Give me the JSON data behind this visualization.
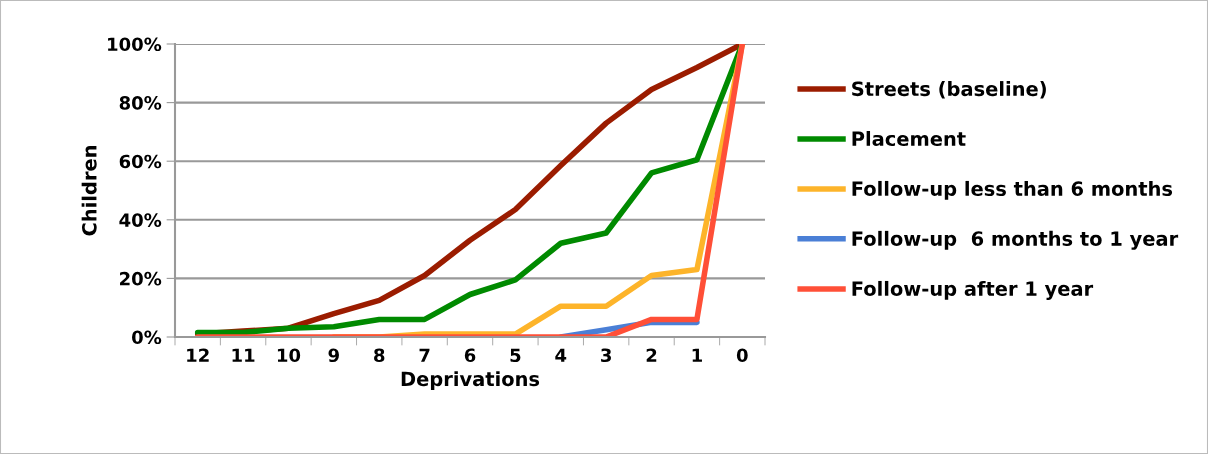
{
  "chart_data": {
    "type": "line",
    "xlabel": "Deprivations",
    "ylabel": "Children",
    "categories": [
      "12",
      "11",
      "10",
      "9",
      "8",
      "7",
      "6",
      "5",
      "4",
      "3",
      "2",
      "1",
      "0"
    ],
    "series": [
      {
        "name": "Streets (baseline)",
        "color": "#9b1c00",
        "values": [
          1,
          2,
          3,
          8,
          12.5,
          21,
          33,
          43.5,
          58.5,
          73,
          84.5,
          92,
          100
        ]
      },
      {
        "name": "Placement",
        "color": "#008a00",
        "values": [
          1.5,
          1.5,
          3,
          3.5,
          6,
          6,
          14.5,
          19.5,
          32,
          35.5,
          56,
          60.5,
          100
        ]
      },
      {
        "name": "Follow-up less than 6 months",
        "color": "#fdb42a",
        "values": [
          null,
          null,
          null,
          0,
          0,
          1,
          1,
          1,
          10.5,
          10.5,
          21,
          23,
          100
        ]
      },
      {
        "name": "Follow-up  6 months to 1 year",
        "color": "#4a7fd6",
        "values": [
          null,
          null,
          null,
          null,
          null,
          null,
          null,
          null,
          0,
          2.5,
          5,
          5,
          null
        ]
      },
      {
        "name": "Follow-up after 1 year",
        "color": "#ff4f37",
        "values": [
          0,
          0,
          0,
          0,
          0,
          0,
          0,
          0,
          0,
          0,
          6,
          6,
          100
        ]
      }
    ],
    "ylim": [
      0,
      100
    ],
    "yticks": [
      {
        "value": 0,
        "label": "0%"
      },
      {
        "value": 20,
        "label": "20%"
      },
      {
        "value": 40,
        "label": "40%"
      },
      {
        "value": 60,
        "label": "60%"
      },
      {
        "value": 80,
        "label": "80%"
      },
      {
        "value": 100,
        "label": "100%"
      }
    ],
    "grid": "y",
    "legend": "right",
    "marker": "none",
    "line_style": "solid"
  }
}
